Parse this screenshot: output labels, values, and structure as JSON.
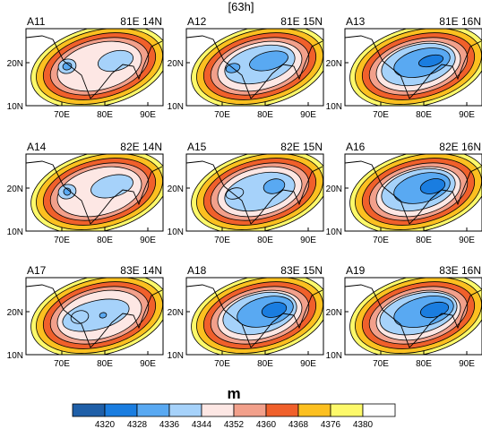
{
  "figure_title": "[63h]",
  "map": {
    "x_ticks": [
      "70E",
      "80E",
      "90E"
    ],
    "y_ticks": [
      "20N",
      "10N"
    ]
  },
  "panels": [
    {
      "id": "A11",
      "location": "81E 14N"
    },
    {
      "id": "A12",
      "location": "81E 15N"
    },
    {
      "id": "A13",
      "location": "81E 16N"
    },
    {
      "id": "A14",
      "location": "82E 14N"
    },
    {
      "id": "A15",
      "location": "82E 15N"
    },
    {
      "id": "A16",
      "location": "82E 16N"
    },
    {
      "id": "A17",
      "location": "83E 14N"
    },
    {
      "id": "A18",
      "location": "83E 15N"
    },
    {
      "id": "A19",
      "location": "83E 16N"
    }
  ],
  "colorbar": {
    "title": "m",
    "labels": [
      "4320",
      "4328",
      "4336",
      "4344",
      "4352",
      "4360",
      "4368",
      "4376",
      "4380"
    ],
    "colors": [
      "#1f5fa8",
      "#1a7de0",
      "#59a9f2",
      "#a6d2fa",
      "#fde7e4",
      "#f2a08b",
      "#f0602b",
      "#fcc020",
      "#fdf96a",
      "#ffffff"
    ]
  },
  "styles": {
    "contour_line": "#000000",
    "frame": "#000000"
  }
}
